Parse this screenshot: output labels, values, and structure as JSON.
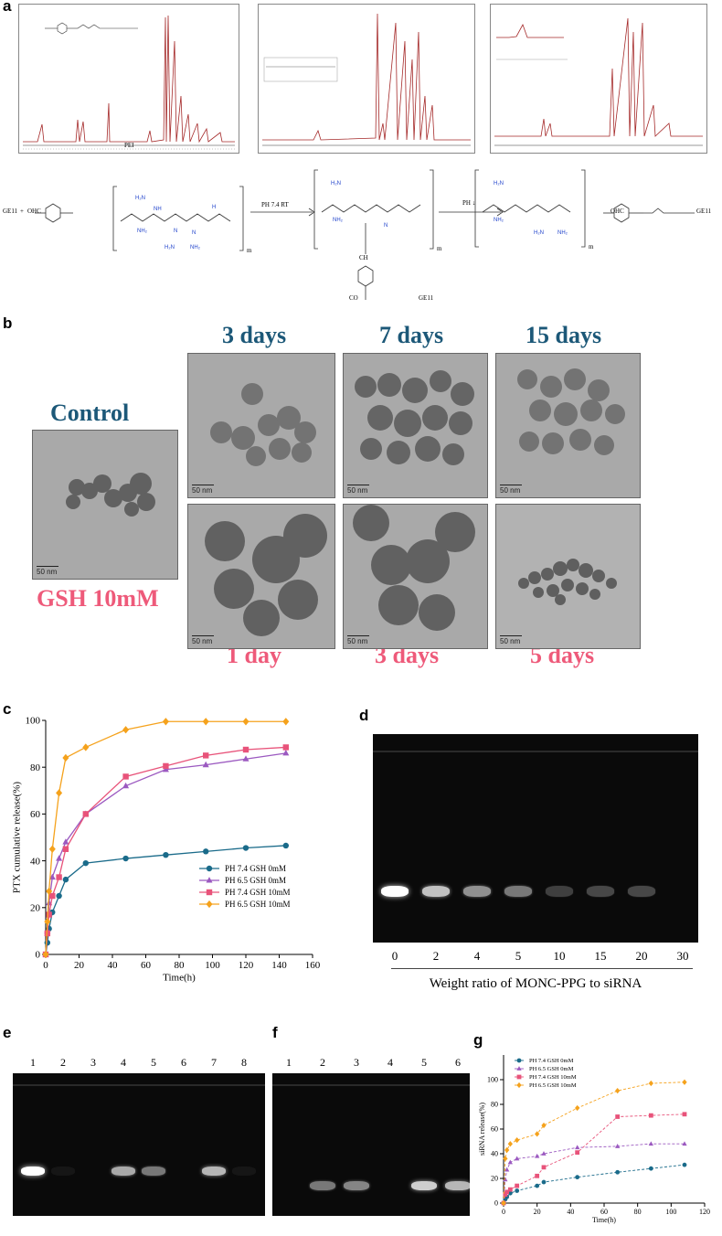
{
  "panels": {
    "a": "a",
    "b": "b",
    "c": "c",
    "d": "d",
    "e": "e",
    "f": "f",
    "g": "g"
  },
  "panel_a": {
    "nmr1_label": "PEI",
    "reaction": {
      "reactant1": "GE11",
      "plus": "+",
      "ohc": "OHC",
      "arrow1": "PH 7.4   RT",
      "arrow2": "PH ↓",
      "product_tail": "GE11",
      "m": "m",
      "n": "n",
      "ch": "CH",
      "co": "CO"
    }
  },
  "panel_b": {
    "top_labels": [
      "3 days",
      "7 days",
      "15 days"
    ],
    "control": "Control",
    "gsh": "GSH 10mM",
    "bottom_labels": [
      "1 day",
      "3 days",
      "5 days"
    ],
    "scale": "50 nm"
  },
  "chart_c": {
    "type": "line",
    "ylabel": "PTX cumulative release(%)",
    "xlabel": "Time(h)",
    "xlim": [
      0,
      160
    ],
    "ylim": [
      0,
      100
    ],
    "xticks": [
      0,
      20,
      40,
      60,
      80,
      100,
      120,
      140,
      160
    ],
    "yticks": [
      0,
      20,
      40,
      60,
      80,
      100
    ],
    "legend_position": "bottom-right",
    "series": [
      {
        "name": "PH 7.4  GSH 0mM",
        "color": "#1a6b8a",
        "marker": "circle",
        "x": [
          0,
          1,
          2,
          4,
          8,
          12,
          24,
          48,
          72,
          96,
          120,
          144
        ],
        "y": [
          0,
          5,
          11,
          18,
          25,
          32,
          39,
          41,
          42.5,
          44,
          45.5,
          46.5
        ]
      },
      {
        "name": "PH 6.5  GSH 0mM",
        "color": "#9b59c0",
        "marker": "triangle",
        "x": [
          0,
          1,
          2,
          4,
          8,
          12,
          24,
          48,
          72,
          96,
          120,
          144
        ],
        "y": [
          0,
          10,
          22,
          33,
          41,
          48,
          60,
          72,
          79,
          81,
          83.5,
          86
        ]
      },
      {
        "name": "PH 7.4  GSH 10mM",
        "color": "#e8537a",
        "marker": "square",
        "x": [
          0,
          1,
          2,
          4,
          8,
          12,
          24,
          48,
          72,
          96,
          120,
          144
        ],
        "y": [
          0,
          9,
          17,
          25,
          33,
          45,
          60,
          76,
          80.5,
          85,
          87.5,
          88.5
        ]
      },
      {
        "name": "PH 6.5  GSH 10mM",
        "color": "#f5a21c",
        "marker": "diamond",
        "x": [
          0,
          1,
          2,
          4,
          8,
          12,
          24,
          48,
          72,
          96,
          120,
          144
        ],
        "y": [
          0,
          14,
          27,
          45,
          69,
          84,
          88.5,
          96,
          99.5,
          99.5,
          99.5,
          99.5
        ]
      }
    ]
  },
  "panel_d": {
    "lanes": [
      "0",
      "2",
      "4",
      "5",
      "10",
      "15",
      "20",
      "30"
    ],
    "band_intensity": [
      1.0,
      0.75,
      0.55,
      0.45,
      0.22,
      0.25,
      0.25,
      0.0
    ],
    "xlabel": "Weight ratio of MONC-PPG to siRNA"
  },
  "panel_e": {
    "lanes": [
      "1",
      "2",
      "3",
      "4",
      "5",
      "6",
      "7",
      "8"
    ],
    "band_intensity": [
      1.0,
      0.05,
      0.0,
      0.65,
      0.45,
      0.0,
      0.7,
      0.05
    ]
  },
  "panel_f": {
    "lanes": [
      "1",
      "2",
      "3",
      "4",
      "5",
      "6"
    ],
    "band_intensity": [
      0.0,
      0.45,
      0.5,
      0.0,
      0.8,
      0.7
    ]
  },
  "chart_g": {
    "type": "line",
    "ylabel": "siRNA release(%)",
    "xlabel": "Time(h)",
    "xlim": [
      0,
      120
    ],
    "ylim": [
      0,
      120
    ],
    "xticks": [
      0,
      20,
      40,
      60,
      80,
      100,
      120
    ],
    "yticks": [
      0,
      20,
      40,
      60,
      80,
      100
    ],
    "legend_position": "top-left",
    "series": [
      {
        "name": "PH 7.4 GSH 0mM",
        "color": "#1a6b8a",
        "marker": "circle",
        "x": [
          0,
          1,
          2,
          4,
          8,
          20,
          24,
          44,
          68,
          88,
          108
        ],
        "y": [
          0,
          3,
          5,
          8,
          10,
          14,
          17,
          21,
          25,
          28,
          31
        ]
      },
      {
        "name": "PH 6.5 GSH 0mM",
        "color": "#9b59c0",
        "marker": "triangle",
        "x": [
          0,
          1,
          2,
          4,
          8,
          20,
          24,
          44,
          68,
          88,
          108
        ],
        "y": [
          0,
          19,
          27,
          33,
          36,
          38,
          40,
          45,
          46,
          48,
          48
        ]
      },
      {
        "name": "PH 7.4 GSH 10mM",
        "color": "#e8537a",
        "marker": "square",
        "x": [
          0,
          1,
          2,
          4,
          8,
          20,
          24,
          44,
          68,
          88,
          108
        ],
        "y": [
          0,
          7,
          9,
          11,
          14,
          22,
          29,
          41,
          70,
          71,
          72
        ]
      },
      {
        "name": "PH 6.5 GSH 10mM",
        "color": "#f5a21c",
        "marker": "diamond",
        "x": [
          0,
          1,
          2,
          4,
          8,
          20,
          24,
          44,
          68,
          88,
          108
        ],
        "y": [
          0,
          36,
          43,
          48,
          51,
          56,
          63,
          77,
          91,
          97,
          98
        ]
      }
    ]
  }
}
